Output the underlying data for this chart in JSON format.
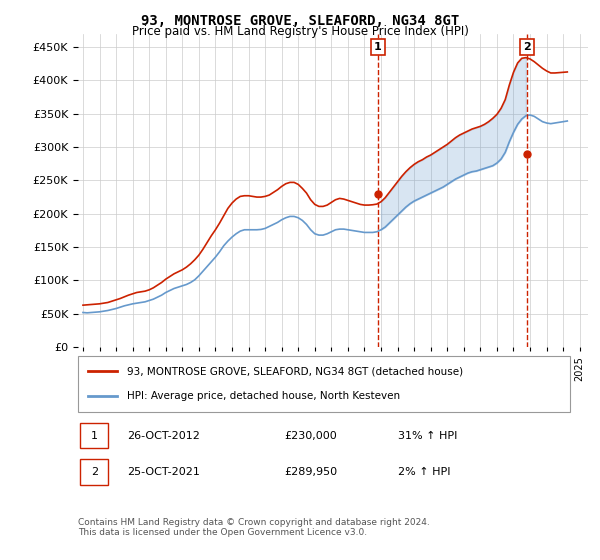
{
  "title": "93, MONTROSE GROVE, SLEAFORD, NG34 8GT",
  "subtitle": "Price paid vs. HM Land Registry's House Price Index (HPI)",
  "ylabel_ticks": [
    "£0",
    "£50K",
    "£100K",
    "£150K",
    "£200K",
    "£250K",
    "£300K",
    "£350K",
    "£400K",
    "£450K"
  ],
  "ytick_values": [
    0,
    50000,
    100000,
    150000,
    200000,
    250000,
    300000,
    350000,
    400000,
    450000
  ],
  "ylim": [
    0,
    470000
  ],
  "xlim_start": 1995.0,
  "xlim_end": 2025.5,
  "hpi_color": "#6699cc",
  "price_color": "#cc2200",
  "dashed_line_color": "#cc2200",
  "background_color": "#ffffff",
  "grid_color": "#cccccc",
  "sale1_x": 2012.82,
  "sale1_y": 230000,
  "sale2_x": 2021.82,
  "sale2_y": 289950,
  "legend_label1": "93, MONTROSE GROVE, SLEAFORD, NG34 8GT (detached house)",
  "legend_label2": "HPI: Average price, detached house, North Kesteven",
  "table_row1": [
    "1",
    "26-OCT-2012",
    "£230,000",
    "31% ↑ HPI"
  ],
  "table_row2": [
    "2",
    "25-OCT-2021",
    "£289,950",
    "2% ↑ HPI"
  ],
  "footer": "Contains HM Land Registry data © Crown copyright and database right 2024.\nThis data is licensed under the Open Government Licence v3.0.",
  "hpi_data_x": [
    1995,
    1995.25,
    1995.5,
    1995.75,
    1996,
    1996.25,
    1996.5,
    1996.75,
    1997,
    1997.25,
    1997.5,
    1997.75,
    1998,
    1998.25,
    1998.5,
    1998.75,
    1999,
    1999.25,
    1999.5,
    1999.75,
    2000,
    2000.25,
    2000.5,
    2000.75,
    2001,
    2001.25,
    2001.5,
    2001.75,
    2002,
    2002.25,
    2002.5,
    2002.75,
    2003,
    2003.25,
    2003.5,
    2003.75,
    2004,
    2004.25,
    2004.5,
    2004.75,
    2005,
    2005.25,
    2005.5,
    2005.75,
    2006,
    2006.25,
    2006.5,
    2006.75,
    2007,
    2007.25,
    2007.5,
    2007.75,
    2008,
    2008.25,
    2008.5,
    2008.75,
    2009,
    2009.25,
    2009.5,
    2009.75,
    2010,
    2010.25,
    2010.5,
    2010.75,
    2011,
    2011.25,
    2011.5,
    2011.75,
    2012,
    2012.25,
    2012.5,
    2012.75,
    2013,
    2013.25,
    2013.5,
    2013.75,
    2014,
    2014.25,
    2014.5,
    2014.75,
    2015,
    2015.25,
    2015.5,
    2015.75,
    2016,
    2016.25,
    2016.5,
    2016.75,
    2017,
    2017.25,
    2017.5,
    2017.75,
    2018,
    2018.25,
    2018.5,
    2018.75,
    2019,
    2019.25,
    2019.5,
    2019.75,
    2020,
    2020.25,
    2020.5,
    2020.75,
    2021,
    2021.25,
    2021.5,
    2021.75,
    2022,
    2022.25,
    2022.5,
    2022.75,
    2023,
    2023.25,
    2023.5,
    2023.75,
    2024,
    2024.25
  ],
  "hpi_data_y": [
    52000,
    51500,
    52000,
    52500,
    53000,
    54000,
    55000,
    56500,
    58000,
    60000,
    62000,
    63500,
    65000,
    66000,
    67000,
    68000,
    70000,
    72000,
    75000,
    78000,
    82000,
    85000,
    88000,
    90000,
    92000,
    94000,
    97000,
    101000,
    107000,
    114000,
    121000,
    128000,
    135000,
    143000,
    152000,
    159000,
    165000,
    170000,
    174000,
    176000,
    176000,
    176000,
    176000,
    176500,
    178000,
    181000,
    184000,
    187000,
    191000,
    194000,
    196000,
    196000,
    194000,
    190000,
    184000,
    176000,
    170000,
    168000,
    168000,
    170000,
    173000,
    176000,
    177000,
    177000,
    176000,
    175000,
    174000,
    173000,
    172000,
    172000,
    172000,
    173000,
    176000,
    180000,
    186000,
    192000,
    198000,
    204000,
    210000,
    215000,
    219000,
    222000,
    225000,
    228000,
    231000,
    234000,
    237000,
    240000,
    244000,
    248000,
    252000,
    255000,
    258000,
    261000,
    263000,
    264000,
    266000,
    268000,
    270000,
    272000,
    276000,
    282000,
    292000,
    308000,
    322000,
    334000,
    342000,
    347000,
    348000,
    346000,
    342000,
    338000,
    336000,
    335000,
    336000,
    337000,
    338000,
    339000
  ],
  "price_data_x": [
    1995,
    1995.25,
    1995.5,
    1995.75,
    1996,
    1996.25,
    1996.5,
    1996.75,
    1997,
    1997.25,
    1997.5,
    1997.75,
    1998,
    1998.25,
    1998.5,
    1998.75,
    1999,
    1999.25,
    1999.5,
    1999.75,
    2000,
    2000.25,
    2000.5,
    2000.75,
    2001,
    2001.25,
    2001.5,
    2001.75,
    2002,
    2002.25,
    2002.5,
    2002.75,
    2003,
    2003.25,
    2003.5,
    2003.75,
    2004,
    2004.25,
    2004.5,
    2004.75,
    2005,
    2005.25,
    2005.5,
    2005.75,
    2006,
    2006.25,
    2006.5,
    2006.75,
    2007,
    2007.25,
    2007.5,
    2007.75,
    2008,
    2008.25,
    2008.5,
    2008.75,
    2009,
    2009.25,
    2009.5,
    2009.75,
    2010,
    2010.25,
    2010.5,
    2010.75,
    2011,
    2011.25,
    2011.5,
    2011.75,
    2012,
    2012.25,
    2012.5,
    2012.75,
    2013,
    2013.25,
    2013.5,
    2013.75,
    2014,
    2014.25,
    2014.5,
    2014.75,
    2015,
    2015.25,
    2015.5,
    2015.75,
    2016,
    2016.25,
    2016.5,
    2016.75,
    2017,
    2017.25,
    2017.5,
    2017.75,
    2018,
    2018.25,
    2018.5,
    2018.75,
    2019,
    2019.25,
    2019.5,
    2019.75,
    2020,
    2020.25,
    2020.5,
    2020.75,
    2021,
    2021.25,
    2021.5,
    2021.75,
    2022,
    2022.25,
    2022.5,
    2022.75,
    2023,
    2023.25,
    2023.5,
    2023.75,
    2024,
    2024.25
  ],
  "price_data_y": [
    63000,
    63500,
    64000,
    64500,
    65000,
    66000,
    67000,
    69000,
    71000,
    73000,
    75500,
    78000,
    80000,
    82000,
    83000,
    84000,
    86000,
    89000,
    93000,
    97000,
    102000,
    106000,
    110000,
    113000,
    116000,
    120000,
    125000,
    131000,
    138000,
    147000,
    157000,
    167000,
    176000,
    186000,
    197000,
    208000,
    216000,
    222000,
    226000,
    227000,
    227000,
    226000,
    225000,
    225000,
    226000,
    228000,
    232000,
    236000,
    241000,
    245000,
    247000,
    247000,
    244000,
    238000,
    231000,
    221000,
    214000,
    211000,
    211000,
    213000,
    217000,
    221000,
    223000,
    222000,
    220000,
    218000,
    216000,
    214000,
    213000,
    213000,
    213500,
    214500,
    218000,
    224000,
    232000,
    240000,
    248000,
    256000,
    263000,
    269000,
    274000,
    278000,
    281000,
    285000,
    288000,
    292000,
    296000,
    300000,
    304000,
    309000,
    314000,
    318000,
    321000,
    324000,
    327000,
    329000,
    331000,
    334000,
    338000,
    343000,
    349000,
    358000,
    371000,
    393000,
    412000,
    426000,
    433000,
    434000,
    432000,
    428000,
    423000,
    418000,
    414000,
    411000,
    411000,
    411500,
    412000,
    412500
  ]
}
